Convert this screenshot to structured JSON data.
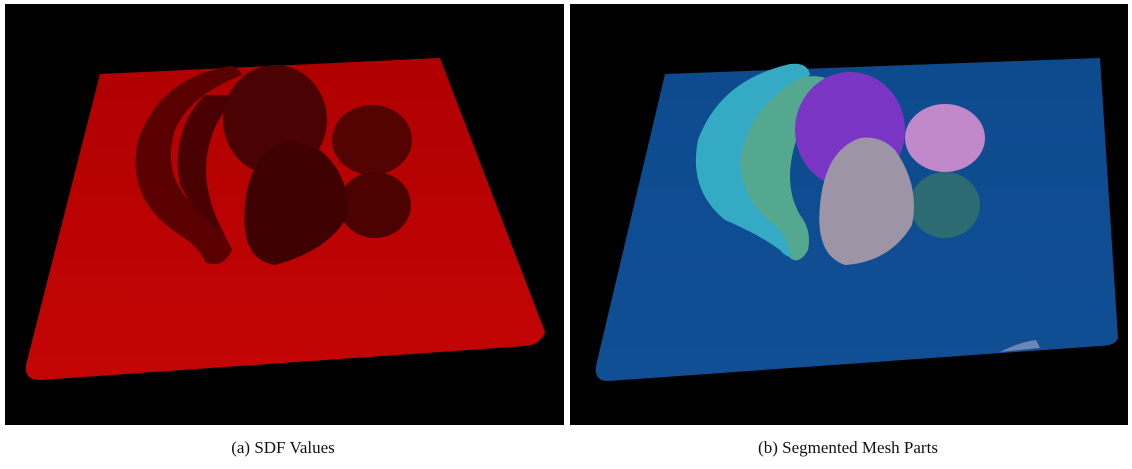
{
  "figure": {
    "panels": [
      {
        "caption": "(a) SDF Values"
      },
      {
        "caption": "(b) Segmented Mesh Parts"
      }
    ]
  }
}
